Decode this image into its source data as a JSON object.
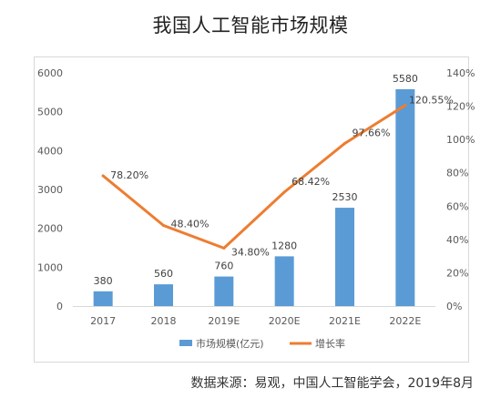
{
  "title": "我国人工智能市场规模",
  "source": "数据来源：易观，中国人工智能学会，2019年8月",
  "colors": {
    "bar": "#5b9bd5",
    "line": "#ed7d31",
    "axis_text": "#595959",
    "grid": "#d9d9d9"
  },
  "chart_data": {
    "type": "bar+line",
    "title": "我国人工智能市场规模",
    "categories": [
      "2017",
      "2018",
      "2019E",
      "2020E",
      "2021E",
      "2022E"
    ],
    "series": [
      {
        "name": "市场规模(亿元)",
        "type": "bar",
        "axis": "left",
        "values": [
          380,
          560,
          760,
          1280,
          2530,
          5580
        ],
        "labels": [
          "380",
          "560",
          "760",
          "1280",
          "2530",
          "5580"
        ]
      },
      {
        "name": "增长率",
        "type": "line",
        "axis": "right",
        "values": [
          78.2,
          48.4,
          34.8,
          68.42,
          97.66,
          120.55
        ],
        "labels": [
          "78.20%",
          "48.40%",
          "34.80%",
          "68.42%",
          "97.66%",
          "120.55%"
        ]
      }
    ],
    "y_left": {
      "min": 0,
      "max": 6000,
      "ticks": [
        "0",
        "1000",
        "2000",
        "3000",
        "4000",
        "5000",
        "6000"
      ],
      "tick_values": [
        0,
        1000,
        2000,
        3000,
        4000,
        5000,
        6000
      ]
    },
    "y_right": {
      "min": 0,
      "max": 140,
      "ticks": [
        "0%",
        "20%",
        "40%",
        "60%",
        "80%",
        "100%",
        "120%",
        "140%"
      ],
      "tick_values": [
        0,
        20,
        40,
        60,
        80,
        100,
        120,
        140
      ]
    },
    "grid": false,
    "legend": "bottom"
  }
}
